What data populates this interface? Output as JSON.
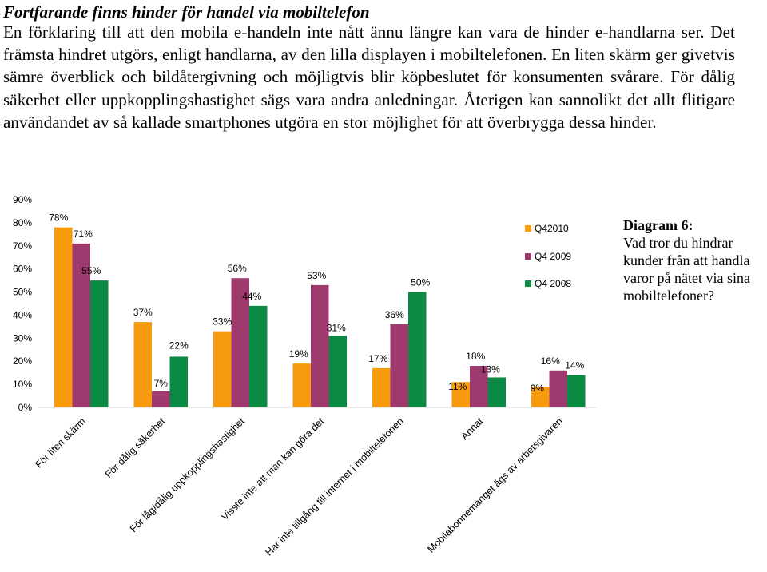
{
  "document": {
    "heading": "Fortfarande finns hinder för handel via mobiltelefon",
    "paragraph": "En förklaring till att den mobila e-handeln inte nått ännu längre kan vara de hinder e-handlarna ser. Det främsta hindret utgörs, enligt handlarna, av den lilla displayen i mobiltelefonen. En liten skärm ger givetvis sämre överblick och bildåtergivning och möjligtvis blir köpbeslutet för konsumenten svårare. För dålig säkerhet eller uppkopplingshastighet sägs vara andra anledningar. Återigen kan sannolikt det allt flitigare användandet av så kallade smartphones utgöra en stor möjlighet för att överbrygga dessa hinder."
  },
  "caption": {
    "title": "Diagram 6:",
    "text": "Vad tror du hindrar kunder från att handla varor på nätet via sina mobiltelefoner?"
  },
  "chart_data": {
    "type": "bar",
    "categories": [
      "För liten skärm",
      "För dålig säkerhet",
      "För låg/dålig uppkopplingshastighet",
      "Visste inte att man kan göra det",
      "Har inte tillgång till internet i mobiltelefonen",
      "Annat",
      "Mobilabonnemanget ägs av arbetsgivaren"
    ],
    "series": [
      {
        "name": "Q42010",
        "color": "#F79A0E",
        "values": [
          78,
          37,
          33,
          19,
          17,
          11,
          9
        ]
      },
      {
        "name": "Q4 2009",
        "color": "#9E3A6E",
        "values": [
          71,
          7,
          56,
          53,
          36,
          18,
          16
        ]
      },
      {
        "name": "Q4 2008",
        "color": "#0B8A44",
        "values": [
          55,
          22,
          44,
          31,
          50,
          13,
          14
        ]
      }
    ],
    "value_labels": [
      [
        "78%",
        "37%",
        "33%",
        "19%",
        "17%",
        "11%",
        "9%"
      ],
      [
        "71%",
        "7%",
        "56%",
        "53%",
        "36%",
        "18%",
        "16%"
      ],
      [
        "55%",
        "22%",
        "44%",
        "31%",
        "50%",
        "13%",
        "14%"
      ]
    ],
    "ylim": [
      0,
      90
    ],
    "yticks": [
      0,
      10,
      20,
      30,
      40,
      50,
      60,
      70,
      80,
      90
    ],
    "ytick_labels": [
      "0%",
      "10%",
      "20%",
      "30%",
      "40%",
      "50%",
      "60%",
      "70%",
      "80%",
      "90%"
    ],
    "legend": "right",
    "grid": false
  }
}
